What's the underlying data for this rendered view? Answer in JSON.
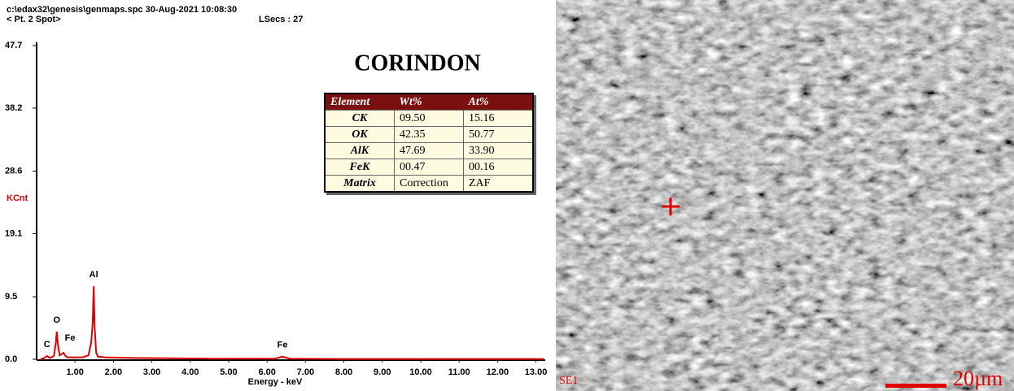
{
  "header": {
    "file": "c:\\edax32\\genesis\\genmaps.spc  30-Aug-2021 10:08:30",
    "spot": "< Pt.  2 Spot>",
    "lsecs": "LSecs : 27"
  },
  "chart_data": {
    "type": "line",
    "title": "CORINDON",
    "xlabel": "Energy - keV",
    "ylabel": "KCnt",
    "x": [
      0.1,
      0.2,
      0.27,
      0.35,
      0.45,
      0.5,
      0.525,
      0.55,
      0.6,
      0.65,
      0.7,
      0.75,
      0.8,
      1.0,
      1.2,
      1.35,
      1.42,
      1.46,
      1.486,
      1.51,
      1.55,
      1.6,
      1.8,
      2.5,
      3.5,
      4.5,
      6.2,
      6.4,
      6.6,
      8,
      10,
      12,
      13.2
    ],
    "series": [
      {
        "name": "spectrum",
        "color": "#e00000",
        "values": [
          0,
          0.2,
          0.5,
          0.2,
          0.5,
          2.5,
          4.2,
          2.5,
          0.6,
          0.8,
          1.0,
          0.5,
          0.3,
          0.3,
          0.3,
          0.6,
          2.5,
          5.5,
          11.1,
          5,
          1.0,
          0.4,
          0.3,
          0.2,
          0.15,
          0.1,
          0.1,
          0.4,
          0.1,
          0.05,
          0.05,
          0.05,
          0.05
        ]
      }
    ],
    "xlim": [
      0,
      13.2
    ],
    "ylim": [
      0,
      47.7
    ],
    "xticks": [
      {
        "value": 1,
        "label": "1.00"
      },
      {
        "value": 2,
        "label": "2.00"
      },
      {
        "value": 3,
        "label": "3.00"
      },
      {
        "value": 4,
        "label": "4.00"
      },
      {
        "value": 5,
        "label": "5.00"
      },
      {
        "value": 6,
        "label": "6.00"
      },
      {
        "value": 7,
        "label": "7.00"
      },
      {
        "value": 8,
        "label": "8.00"
      },
      {
        "value": 9,
        "label": "9.00"
      },
      {
        "value": 10,
        "label": "10.00"
      },
      {
        "value": 11,
        "label": "11.00"
      },
      {
        "value": 12,
        "label": "12.00"
      },
      {
        "value": 13,
        "label": "13.00"
      }
    ],
    "yticks": [
      {
        "value": 0,
        "label": "0.0"
      },
      9.5,
      19.1,
      28.6,
      38.2,
      47.7
    ],
    "annotations": [
      {
        "label": "C",
        "x": 0.27,
        "y": 0.5
      },
      {
        "label": "O",
        "x": 0.525,
        "y": 4.2
      },
      {
        "label": "Fe",
        "x": 0.7,
        "y": 1.0
      },
      {
        "label": "Al",
        "x": 1.486,
        "y": 11.1
      },
      {
        "label": "Fe",
        "x": 6.4,
        "y": 0.4
      }
    ]
  },
  "table": {
    "header": [
      "Element",
      "Wt%",
      "At%"
    ],
    "rows": [
      [
        "CK",
        "09.50",
        "15.16"
      ],
      [
        "OK",
        "42.35",
        "50.77"
      ],
      [
        "AlK",
        "47.69",
        "33.90"
      ],
      [
        "FeK",
        "00.47",
        "00.16"
      ],
      [
        "Matrix",
        "Correction",
        "ZAF"
      ]
    ]
  },
  "image": {
    "mode": "SE1",
    "scale": "20µm"
  }
}
